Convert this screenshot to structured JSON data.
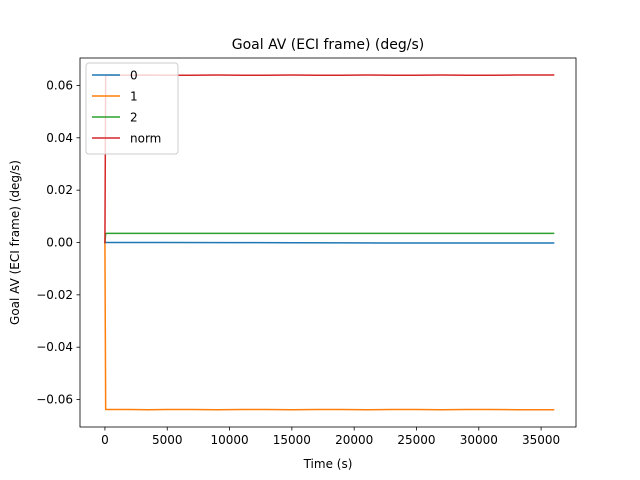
{
  "chart_data": {
    "type": "line",
    "title": "Goal AV (ECI frame) (deg/s)",
    "xlabel": "Time (s)",
    "ylabel": "Goal AV (ECI frame) (deg/s)",
    "xlim": [
      -2000,
      37800
    ],
    "ylim": [
      -0.0705,
      0.0705
    ],
    "xticks": [
      0,
      5000,
      10000,
      15000,
      20000,
      25000,
      30000,
      35000
    ],
    "xtick_labels": [
      "0",
      "5000",
      "10000",
      "15000",
      "20000",
      "25000",
      "30000",
      "35000"
    ],
    "yticks": [
      -0.06,
      -0.04,
      -0.02,
      0.0,
      0.02,
      0.04,
      0.06
    ],
    "ytick_labels": [
      "−0.06",
      "−0.04",
      "−0.02",
      "0.00",
      "0.02",
      "0.04",
      "0.06"
    ],
    "grid": false,
    "legend_position": "upper-left",
    "series": [
      {
        "name": "0",
        "color": "#1f77b4",
        "x": [
          0,
          60,
          5000,
          10000,
          15000,
          20000,
          25000,
          30000,
          36000
        ],
        "y": [
          0.0,
          0.0,
          0.0,
          -5e-05,
          -0.0001,
          -0.00015,
          -0.0002,
          -0.0002,
          -0.0002
        ]
      },
      {
        "name": "1",
        "color": "#ff7f0e",
        "x": [
          0,
          60,
          2000,
          3500,
          5000,
          7000,
          9000,
          11000,
          13000,
          15000,
          17000,
          19000,
          21000,
          23000,
          25000,
          27000,
          29000,
          31000,
          33000,
          36000
        ],
        "y": [
          0.0,
          -0.0638,
          -0.0638,
          -0.0639,
          -0.0638,
          -0.0638,
          -0.0639,
          -0.0638,
          -0.0638,
          -0.0639,
          -0.0638,
          -0.0638,
          -0.0639,
          -0.0638,
          -0.0638,
          -0.0639,
          -0.0638,
          -0.0638,
          -0.0639,
          -0.0639
        ]
      },
      {
        "name": "2",
        "color": "#2ca02c",
        "x": [
          0,
          60,
          5000,
          10000,
          15000,
          20000,
          25000,
          30000,
          36000
        ],
        "y": [
          0.0,
          0.0035,
          0.0035,
          0.0035,
          0.0035,
          0.0035,
          0.0035,
          0.0035,
          0.0035
        ]
      },
      {
        "name": "norm",
        "color": "#d62728",
        "x": [
          0,
          60,
          2000,
          3500,
          5000,
          7000,
          9000,
          11000,
          13000,
          15000,
          17000,
          19000,
          21000,
          23000,
          25000,
          27000,
          29000,
          31000,
          33000,
          36000
        ],
        "y": [
          0.0,
          0.0639,
          0.0639,
          0.064,
          0.0639,
          0.0639,
          0.064,
          0.0639,
          0.0639,
          0.064,
          0.0639,
          0.0639,
          0.064,
          0.0639,
          0.0639,
          0.064,
          0.0639,
          0.0639,
          0.064,
          0.064
        ]
      }
    ]
  }
}
